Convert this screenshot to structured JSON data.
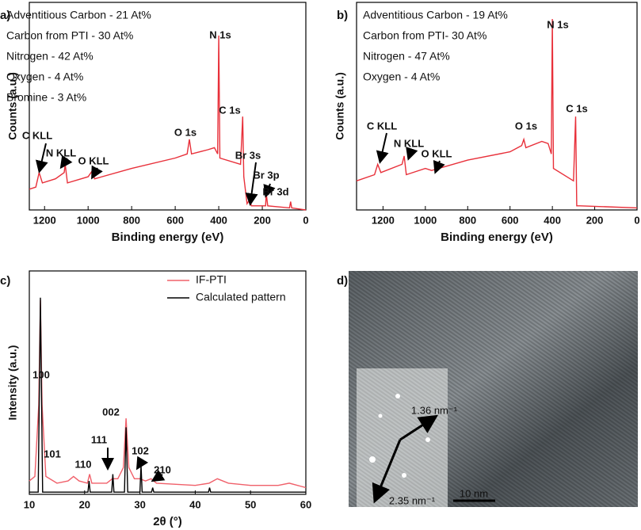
{
  "chart_data": [
    {
      "type": "line",
      "panel_label": "a)",
      "xlabel": "Binding energy (eV)",
      "ylabel": "Counts (a.u.)",
      "xlim": [
        1270,
        0
      ],
      "xticks": [
        1200,
        1000,
        800,
        600,
        400,
        200,
        0
      ],
      "ylim": [
        0,
        100
      ],
      "color": "#e8303a",
      "composition": [
        "Adventitious Carbon - 21 At%",
        "Carbon from PTI - 30 At%",
        "Nitrogen - 42 At%",
        "Oxygen - 4 At%",
        "Bromine - 3 At%"
      ],
      "annotations": [
        "C KLL",
        "N KLL",
        "O KLL",
        "O 1s",
        "N 1s",
        "C 1s",
        "Br 3s",
        "Br 3p",
        "Br 3d"
      ],
      "x": [
        1270,
        1240,
        1225,
        1210,
        1150,
        1110,
        1105,
        1095,
        1000,
        980,
        970,
        800,
        600,
        545,
        535,
        525,
        450,
        420,
        405,
        400,
        395,
        300,
        290,
        285,
        270,
        258,
        250,
        185,
        182,
        175,
        75,
        70,
        65,
        0
      ],
      "values": [
        10,
        11,
        18,
        13,
        15,
        18,
        22,
        13,
        16,
        19,
        15,
        20,
        25,
        27,
        34,
        27,
        29,
        30,
        27,
        84,
        25,
        22,
        45,
        16,
        3,
        5,
        2,
        2,
        8,
        2,
        1,
        4,
        1,
        0
      ]
    },
    {
      "type": "line",
      "panel_label": "b)",
      "xlabel": "Binding energy (eV)",
      "ylabel": "Counts (a.u.)",
      "xlim": [
        1325,
        0
      ],
      "xticks": [
        1200,
        1000,
        800,
        600,
        400,
        200,
        0
      ],
      "ylim": [
        0,
        100
      ],
      "color": "#e8303a",
      "composition": [
        "Adventitious Carbon - 19 At%",
        "Carbon from PTI- 30 At%",
        "Nitrogen - 47 At%",
        "Oxygen - 4 At%"
      ],
      "annotations": [
        "C KLL",
        "N KLL",
        "O KLL",
        "O 1s",
        "N 1s",
        "C 1s"
      ],
      "x": [
        1325,
        1240,
        1225,
        1210,
        1110,
        1100,
        1090,
        1000,
        970,
        800,
        600,
        545,
        535,
        525,
        450,
        420,
        405,
        400,
        395,
        300,
        290,
        285,
        270,
        0
      ],
      "values": [
        14,
        17,
        22,
        18,
        22,
        26,
        17,
        20,
        19,
        24,
        28,
        31,
        34,
        30,
        33,
        32,
        27,
        92,
        20,
        14,
        45,
        2,
        2,
        1
      ]
    },
    {
      "type": "line",
      "panel_label": "c)",
      "xlabel": "2θ (°)",
      "ylabel": "Intensity (a.u.)",
      "xlim": [
        10,
        60
      ],
      "xticks": [
        10,
        20,
        30,
        40,
        50,
        60
      ],
      "ylim": [
        0,
        100
      ],
      "legend": "top-right",
      "annotations": [
        "100",
        "101",
        "110",
        "111",
        "002",
        "102",
        "210"
      ],
      "series": [
        {
          "name": "IF-PTI",
          "color": "#f0606a",
          "x": [
            10,
            11,
            11.7,
            12,
            12.3,
            13,
            15,
            17,
            18,
            19,
            20.5,
            20.9,
            21.3,
            24,
            25,
            26,
            27,
            27.5,
            28,
            29,
            30,
            31,
            32,
            33,
            40,
            42.5,
            44,
            46,
            50,
            55,
            57,
            60
          ],
          "values": [
            6,
            8,
            40,
            87,
            40,
            8,
            5,
            6,
            8,
            6,
            5,
            9,
            5,
            5,
            7,
            7,
            12,
            34,
            12,
            7,
            7,
            6,
            7,
            5,
            4,
            5,
            7,
            5,
            4,
            4,
            5,
            3
          ]
        },
        {
          "name": "Calculated pattern",
          "color": "#000000",
          "x": [
            10,
            11.6,
            12,
            12.4,
            20.6,
            20.8,
            21,
            24.9,
            25.1,
            25.3,
            27.2,
            27.5,
            27.8,
            30,
            30.2,
            30.4,
            32.1,
            32.3,
            32.5,
            42.4,
            42.6,
            42.8,
            60
          ],
          "values": [
            1,
            1,
            88,
            1,
            1,
            6,
            1,
            1,
            9,
            1,
            1,
            30,
            1,
            1,
            13,
            1,
            1,
            3,
            1,
            1,
            3,
            1,
            1
          ]
        }
      ]
    }
  ],
  "image_panel": {
    "panel_label": "d)",
    "labels": [
      "1.36 nm⁻¹",
      "2.35 nm⁻¹",
      "10 nm"
    ]
  }
}
